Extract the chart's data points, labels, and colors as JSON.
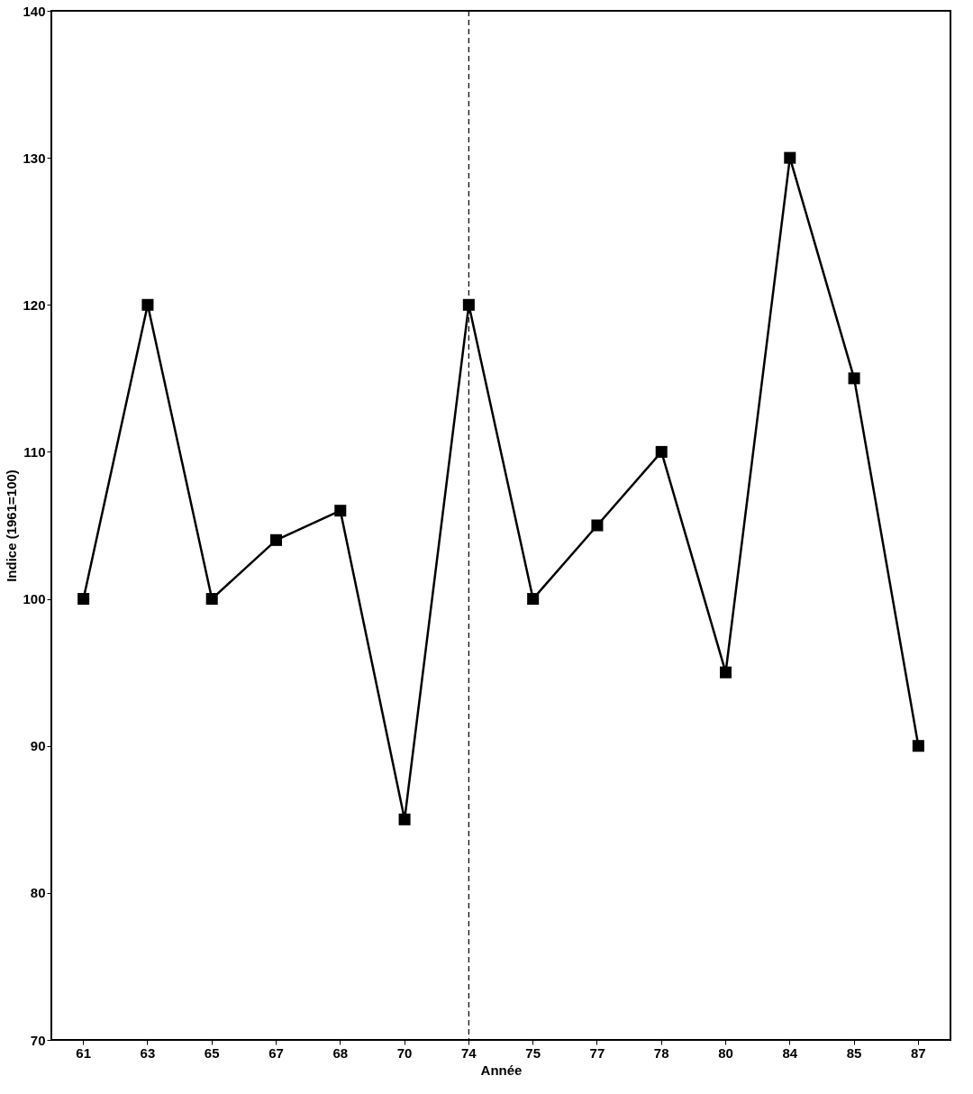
{
  "chart_data": {
    "type": "line",
    "xlabel": "Année",
    "ylabel": "Indice (1961=100)",
    "categories": [
      "61",
      "63",
      "65",
      "67",
      "68",
      "70",
      "74",
      "75",
      "77",
      "78",
      "80",
      "84",
      "85",
      "87"
    ],
    "series": [
      {
        "color": "#000000",
        "values": [
          100,
          120,
          100,
          104,
          106,
          85,
          120,
          100,
          105,
          110,
          95,
          130,
          115,
          90
        ]
      }
    ],
    "ylim": [
      70,
      140
    ],
    "yticks": [
      70,
      80,
      90,
      100,
      110,
      120,
      130,
      140
    ],
    "ref_lines": [
      {
        "axis": "x",
        "value": "74",
        "line_style": "dashed",
        "color": "#000000"
      }
    ],
    "marker": "square",
    "line_style": "solid",
    "grid": false
  }
}
